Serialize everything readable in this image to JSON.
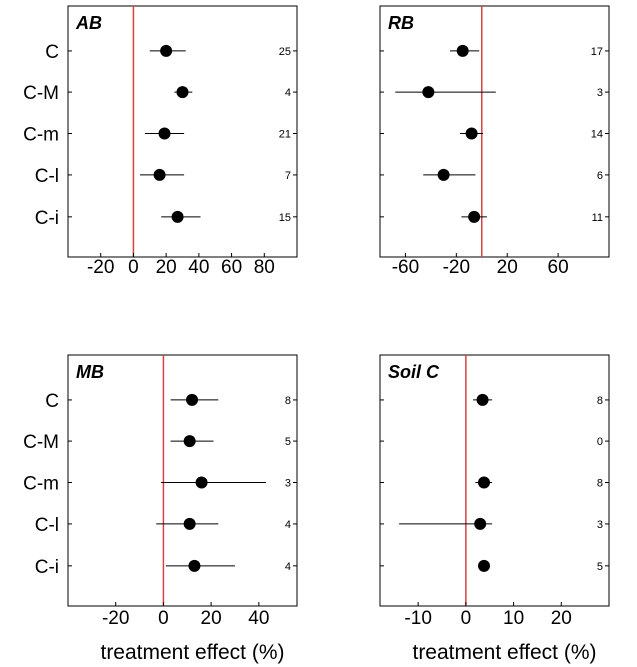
{
  "chart_data": [
    {
      "type": "scatter",
      "title": "AB",
      "xlabel": "",
      "categories": [
        "C",
        "C-M",
        "C-m",
        "C-l",
        "C-i"
      ],
      "xlim": [
        -40,
        100
      ],
      "xticks": [
        "-20",
        "0",
        "20",
        "40",
        "60",
        "80"
      ],
      "xtick_values": [
        -20,
        0,
        20,
        40,
        60,
        80
      ],
      "reference_line": 0,
      "reference_color": "#d94040",
      "points": [
        {
          "category": "C",
          "mean": 20,
          "lo": 10,
          "hi": 32,
          "n": "25"
        },
        {
          "category": "C-M",
          "mean": 30,
          "lo": 25,
          "hi": 36,
          "n": "4"
        },
        {
          "category": "C-m",
          "mean": 19,
          "lo": 7,
          "hi": 31,
          "n": "21"
        },
        {
          "category": "C-l",
          "mean": 16,
          "lo": 4,
          "hi": 31,
          "n": "7"
        },
        {
          "category": "C-i",
          "mean": 27,
          "lo": 17,
          "hi": 41,
          "n": "15"
        }
      ]
    },
    {
      "type": "scatter",
      "title": "RB",
      "xlabel": "",
      "categories": [
        "C",
        "C-M",
        "C-m",
        "C-l",
        "C-i"
      ],
      "xlim": [
        -80,
        100
      ],
      "xticks": [
        "-60",
        "-20",
        "20",
        "60"
      ],
      "xtick_values": [
        -60,
        -20,
        20,
        60
      ],
      "reference_line": 0,
      "reference_color": "#d94040",
      "points": [
        {
          "category": "C",
          "mean": -15,
          "lo": -25,
          "hi": -2,
          "n": "17"
        },
        {
          "category": "C-M",
          "mean": -42,
          "lo": -68,
          "hi": 11,
          "n": "3"
        },
        {
          "category": "C-m",
          "mean": -8,
          "lo": -17,
          "hi": 1,
          "n": "14"
        },
        {
          "category": "C-l",
          "mean": -30,
          "lo": -46,
          "hi": -5,
          "n": "6"
        },
        {
          "category": "C-i",
          "mean": -6,
          "lo": -16,
          "hi": 4,
          "n": "11"
        }
      ]
    },
    {
      "type": "scatter",
      "title": "MB",
      "xlabel": "treatment effect (%)",
      "categories": [
        "C",
        "C-M",
        "C-m",
        "C-l",
        "C-i"
      ],
      "xlim": [
        -40,
        56
      ],
      "xticks": [
        "-20",
        "0",
        "20",
        "40"
      ],
      "xtick_values": [
        -20,
        0,
        20,
        40
      ],
      "reference_line": 0,
      "reference_color": "#d94040",
      "points": [
        {
          "category": "C",
          "mean": 12,
          "lo": 3,
          "hi": 23,
          "n": "8"
        },
        {
          "category": "C-M",
          "mean": 11,
          "lo": 3,
          "hi": 21,
          "n": "5"
        },
        {
          "category": "C-m",
          "mean": 16,
          "lo": -1,
          "hi": 43,
          "n": "3"
        },
        {
          "category": "C-l",
          "mean": 11,
          "lo": -3,
          "hi": 23,
          "n": "4"
        },
        {
          "category": "C-i",
          "mean": 13,
          "lo": 1,
          "hi": 30,
          "n": "4"
        }
      ]
    },
    {
      "type": "scatter",
      "title": "Soil C",
      "xlabel": "treatment effect (%)",
      "categories": [
        "C",
        "C-M",
        "C-m",
        "C-l",
        "C-i"
      ],
      "xlim": [
        -18,
        30
      ],
      "xticks": [
        "-10",
        "0",
        "10",
        "20"
      ],
      "xtick_values": [
        -10,
        0,
        10,
        20
      ],
      "reference_line": 0,
      "reference_color": "#d94040",
      "points": [
        {
          "category": "C",
          "mean": 3.5,
          "lo": 1.5,
          "hi": 5.5,
          "n": "8"
        },
        {
          "category": "C-M",
          "mean": null,
          "lo": null,
          "hi": null,
          "n": "0"
        },
        {
          "category": "C-m",
          "mean": 3.8,
          "lo": 2,
          "hi": 5.5,
          "n": "8"
        },
        {
          "category": "C-l",
          "mean": 3,
          "lo": -14,
          "hi": 5.5,
          "n": "3"
        },
        {
          "category": "C-i",
          "mean": 3.8,
          "lo": 3,
          "hi": 4.6,
          "n": "5"
        }
      ]
    }
  ]
}
